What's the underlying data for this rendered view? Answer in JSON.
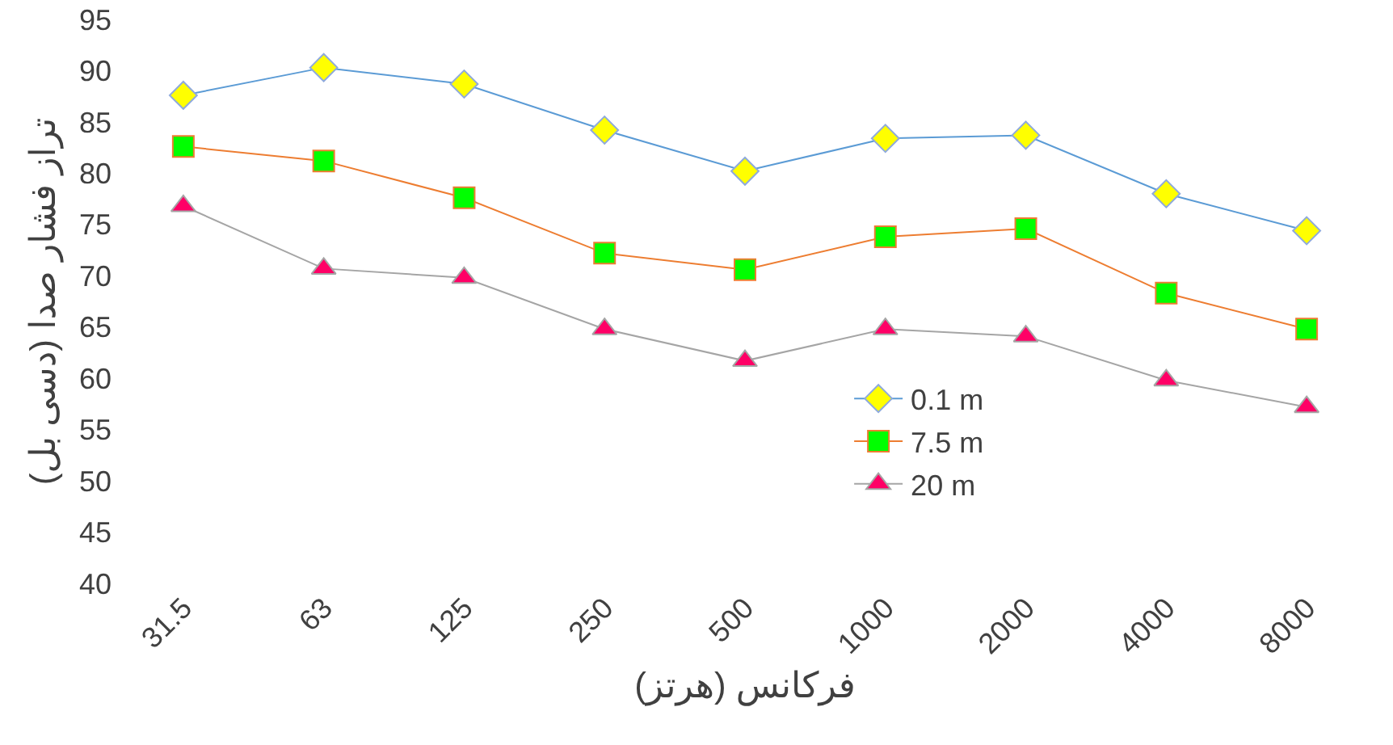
{
  "chart_data": {
    "type": "line",
    "xlabel": "فرکانس (هرتز)",
    "ylabel": "تراز فشار صدا (دسی بل)",
    "categories": [
      "31.5",
      "63",
      "125",
      "250",
      "500",
      "1000",
      "2000",
      "4000",
      "8000"
    ],
    "series": [
      {
        "name": "0.1 m",
        "color": "#ffff00",
        "marker": "diamond",
        "values": [
          87.6,
          90.3,
          88.7,
          84.2,
          80.2,
          83.4,
          83.7,
          78.0,
          74.4
        ]
      },
      {
        "name": "7.5 m",
        "color": "#00ff00",
        "marker": "square",
        "values": [
          82.6,
          81.2,
          77.6,
          72.2,
          70.6,
          73.8,
          74.6,
          68.3,
          64.8
        ]
      },
      {
        "name": "20 m",
        "color": "#ff0066",
        "marker": "triangle",
        "values": [
          76.8,
          70.7,
          69.8,
          64.8,
          61.7,
          64.8,
          64.1,
          59.8,
          57.2
        ]
      }
    ],
    "ylim": [
      40,
      95
    ],
    "yticks": [
      40,
      45,
      50,
      55,
      60,
      65,
      70,
      75,
      80,
      85,
      90,
      95
    ],
    "grid": false,
    "legend": "bottom",
    "line_style": "solid"
  }
}
